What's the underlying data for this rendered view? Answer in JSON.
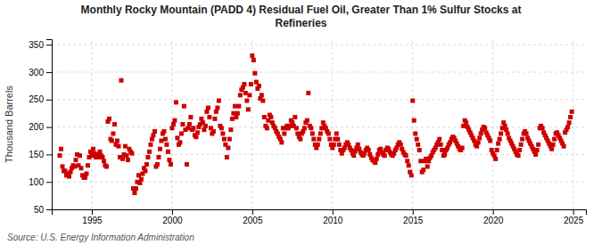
{
  "chart_data": {
    "type": "scatter",
    "title": "Monthly Rocky Mountain (PADD 4) Residual Fuel Oil, Greater Than 1% Sulfur Stocks at\nRefineries",
    "ylabel": "Thousand Barrels",
    "annotations": [
      "Source: U.S. Energy Information Administration"
    ],
    "color": "#cc0000",
    "marker": "square",
    "grid": true,
    "xlim": [
      1992.5,
      2025.8
    ],
    "xticks": [
      1995,
      2000,
      2005,
      2010,
      2015,
      2020,
      2025
    ],
    "ylim": [
      50,
      360
    ],
    "yticks": [
      50,
      100,
      150,
      200,
      250,
      300,
      350
    ],
    "x": [
      1993.0,
      1993.083,
      1993.167,
      1993.25,
      1993.333,
      1993.417,
      1993.5,
      1993.583,
      1993.667,
      1993.75,
      1993.833,
      1993.917,
      1994.0,
      1994.083,
      1994.167,
      1994.25,
      1994.333,
      1994.417,
      1994.5,
      1994.583,
      1994.667,
      1994.75,
      1994.833,
      1994.917,
      1995.0,
      1995.083,
      1995.167,
      1995.25,
      1995.333,
      1995.417,
      1995.5,
      1995.583,
      1995.667,
      1995.75,
      1995.833,
      1995.917,
      1996.0,
      1996.083,
      1996.167,
      1996.25,
      1996.333,
      1996.417,
      1996.5,
      1996.583,
      1996.667,
      1996.75,
      1996.833,
      1996.917,
      1997.0,
      1997.083,
      1997.167,
      1997.25,
      1997.333,
      1997.417,
      1997.5,
      1997.583,
      1997.667,
      1997.75,
      1997.833,
      1997.917,
      1998.0,
      1998.083,
      1998.167,
      1998.25,
      1998.333,
      1998.417,
      1998.5,
      1998.583,
      1998.667,
      1998.75,
      1998.833,
      1998.917,
      1999.0,
      1999.083,
      1999.167,
      1999.25,
      1999.333,
      1999.417,
      1999.5,
      1999.583,
      1999.667,
      1999.75,
      1999.833,
      1999.917,
      2000.0,
      2000.083,
      2000.167,
      2000.25,
      2000.333,
      2000.417,
      2000.5,
      2000.583,
      2000.667,
      2000.75,
      2000.833,
      2000.917,
      2001.0,
      2001.083,
      2001.167,
      2001.25,
      2001.333,
      2001.417,
      2001.5,
      2001.583,
      2001.667,
      2001.75,
      2001.833,
      2001.917,
      2002.0,
      2002.083,
      2002.167,
      2002.25,
      2002.333,
      2002.417,
      2002.5,
      2002.583,
      2002.667,
      2002.75,
      2002.833,
      2002.917,
      2003.0,
      2003.083,
      2003.167,
      2003.25,
      2003.333,
      2003.417,
      2003.5,
      2003.583,
      2003.667,
      2003.75,
      2003.833,
      2003.917,
      2004.0,
      2004.083,
      2004.167,
      2004.25,
      2004.333,
      2004.417,
      2004.5,
      2004.583,
      2004.667,
      2004.75,
      2004.833,
      2004.917,
      2005.0,
      2005.083,
      2005.167,
      2005.25,
      2005.333,
      2005.417,
      2005.5,
      2005.583,
      2005.667,
      2005.75,
      2005.833,
      2005.917,
      2006.0,
      2006.083,
      2006.167,
      2006.25,
      2006.333,
      2006.417,
      2006.5,
      2006.583,
      2006.667,
      2006.75,
      2006.833,
      2006.917,
      2007.0,
      2007.083,
      2007.167,
      2007.25,
      2007.333,
      2007.417,
      2007.5,
      2007.583,
      2007.667,
      2007.75,
      2007.833,
      2007.917,
      2008.0,
      2008.083,
      2008.167,
      2008.25,
      2008.333,
      2008.417,
      2008.5,
      2008.583,
      2008.667,
      2008.75,
      2008.833,
      2008.917,
      2009.0,
      2009.083,
      2009.167,
      2009.25,
      2009.333,
      2009.417,
      2009.5,
      2009.583,
      2009.667,
      2009.75,
      2009.833,
      2009.917,
      2010.0,
      2010.083,
      2010.167,
      2010.25,
      2010.333,
      2010.417,
      2010.5,
      2010.583,
      2010.667,
      2010.75,
      2010.833,
      2010.917,
      2011.0,
      2011.083,
      2011.167,
      2011.25,
      2011.333,
      2011.417,
      2011.5,
      2011.583,
      2011.667,
      2011.75,
      2011.833,
      2011.917,
      2012.0,
      2012.083,
      2012.167,
      2012.25,
      2012.333,
      2012.417,
      2012.5,
      2012.583,
      2012.667,
      2012.75,
      2012.833,
      2012.917,
      2013.0,
      2013.083,
      2013.167,
      2013.25,
      2013.333,
      2013.417,
      2013.5,
      2013.583,
      2013.667,
      2013.75,
      2013.833,
      2013.917,
      2014.0,
      2014.083,
      2014.167,
      2014.25,
      2014.333,
      2014.417,
      2014.5,
      2014.583,
      2014.667,
      2014.75,
      2014.833,
      2014.917,
      2015.0,
      2015.083,
      2015.167,
      2015.25,
      2015.333,
      2015.417,
      2015.5,
      2015.583,
      2015.667,
      2015.75,
      2015.833,
      2015.917,
      2016.0,
      2016.083,
      2016.167,
      2016.25,
      2016.333,
      2016.417,
      2016.5,
      2016.583,
      2016.667,
      2016.75,
      2016.833,
      2016.917,
      2017.0,
      2017.083,
      2017.167,
      2017.25,
      2017.333,
      2017.417,
      2017.5,
      2017.583,
      2017.667,
      2017.75,
      2017.833,
      2017.917,
      2018.0,
      2018.083,
      2018.167,
      2018.25,
      2018.333,
      2018.417,
      2018.5,
      2018.583,
      2018.667,
      2018.75,
      2018.833,
      2018.917,
      2019.0,
      2019.083,
      2019.167,
      2019.25,
      2019.333,
      2019.417,
      2019.5,
      2019.583,
      2019.667,
      2019.75,
      2019.833,
      2019.917,
      2020.0,
      2020.083,
      2020.167,
      2020.25,
      2020.333,
      2020.417,
      2020.5,
      2020.583,
      2020.667,
      2020.75,
      2020.833,
      2020.917,
      2021.0,
      2021.083,
      2021.167,
      2021.25,
      2021.333,
      2021.417,
      2021.5,
      2021.583,
      2021.667,
      2021.75,
      2021.833,
      2021.917,
      2022.0,
      2022.083,
      2022.167,
      2022.25,
      2022.333,
      2022.417,
      2022.5,
      2022.583,
      2022.667,
      2022.75,
      2022.833,
      2022.917,
      2023.0,
      2023.083,
      2023.167,
      2023.25,
      2023.333,
      2023.417,
      2023.5,
      2023.583,
      2023.667,
      2023.75,
      2023.833,
      2023.917,
      2024.0,
      2024.083,
      2024.167,
      2024.25,
      2024.333,
      2024.417,
      2024.5,
      2024.583,
      2024.667,
      2024.75,
      2024.833,
      2024.917
    ],
    "values": [
      148,
      160,
      128,
      120,
      120,
      112,
      115,
      110,
      118,
      125,
      130,
      128,
      140,
      150,
      130,
      148,
      125,
      112,
      108,
      108,
      115,
      130,
      145,
      155,
      148,
      160,
      152,
      145,
      150,
      145,
      155,
      148,
      145,
      138,
      130,
      128,
      210,
      215,
      178,
      175,
      188,
      205,
      168,
      175,
      165,
      145,
      285,
      142,
      150,
      165,
      148,
      140,
      160,
      155,
      152,
      88,
      80,
      88,
      100,
      112,
      98,
      105,
      115,
      125,
      120,
      132,
      145,
      155,
      168,
      178,
      185,
      192,
      128,
      132,
      145,
      160,
      175,
      188,
      192,
      178,
      168,
      155,
      140,
      132,
      198,
      205,
      212,
      245,
      180,
      168,
      172,
      188,
      205,
      238,
      195,
      132,
      198,
      205,
      218,
      195,
      198,
      185,
      182,
      190,
      200,
      205,
      215,
      208,
      195,
      202,
      228,
      235,
      218,
      198,
      188,
      192,
      215,
      228,
      235,
      248,
      202,
      198,
      188,
      178,
      168,
      145,
      162,
      178,
      195,
      215,
      225,
      238,
      218,
      225,
      238,
      258,
      268,
      272,
      278,
      262,
      248,
      232,
      258,
      278,
      330,
      322,
      298,
      282,
      270,
      275,
      252,
      258,
      248,
      218,
      202,
      198,
      212,
      222,
      218,
      208,
      202,
      198,
      192,
      188,
      182,
      178,
      172,
      198,
      188,
      198,
      202,
      198,
      202,
      212,
      208,
      202,
      218,
      198,
      188,
      182,
      178,
      188,
      192,
      198,
      208,
      212,
      262,
      202,
      198,
      188,
      178,
      168,
      162,
      168,
      178,
      188,
      198,
      208,
      202,
      198,
      192,
      188,
      178,
      168,
      162,
      168,
      178,
      188,
      178,
      168,
      158,
      152,
      158,
      162,
      168,
      172,
      168,
      162,
      158,
      152,
      148,
      156,
      162,
      168,
      160,
      154,
      150,
      148,
      152,
      158,
      162,
      158,
      150,
      144,
      140,
      138,
      135,
      142,
      150,
      158,
      160,
      154,
      150,
      148,
      158,
      162,
      160,
      154,
      150,
      148,
      152,
      158,
      162,
      168,
      172,
      168,
      160,
      154,
      150,
      148,
      138,
      130,
      118,
      112,
      248,
      212,
      188,
      178,
      168,
      158,
      138,
      118,
      122,
      138,
      142,
      128,
      138,
      144,
      148,
      154,
      158,
      162,
      168,
      172,
      178,
      168,
      158,
      148,
      150,
      158,
      162,
      168,
      172,
      178,
      182,
      180,
      175,
      170,
      165,
      160,
      158,
      162,
      202,
      212,
      208,
      200,
      195,
      190,
      185,
      180,
      175,
      168,
      165,
      172,
      180,
      188,
      195,
      200,
      198,
      190,
      185,
      180,
      175,
      158,
      152,
      148,
      142,
      158,
      170,
      178,
      188,
      198,
      208,
      202,
      195,
      188,
      180,
      175,
      170,
      165,
      160,
      155,
      150,
      148,
      158,
      168,
      178,
      188,
      192,
      188,
      180,
      175,
      170,
      165,
      160,
      155,
      150,
      158,
      168,
      198,
      202,
      198,
      190,
      185,
      180,
      175,
      170,
      165,
      160,
      168,
      178,
      188,
      190,
      185,
      180,
      175,
      170,
      165,
      190,
      195,
      200,
      208,
      218,
      228
    ]
  }
}
